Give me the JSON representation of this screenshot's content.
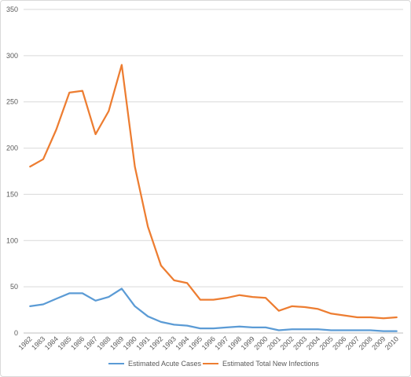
{
  "chart_data": {
    "type": "line",
    "title": "",
    "xlabel": "",
    "ylabel": "",
    "ylim": [
      0,
      350
    ],
    "yticks": [
      0,
      50,
      100,
      150,
      200,
      250,
      300,
      350
    ],
    "grid": true,
    "legend_position": "bottom",
    "categories": [
      "1982",
      "1983",
      "1984",
      "1985",
      "1986",
      "1987",
      "1988",
      "1989",
      "1990",
      "1991",
      "1992",
      "1993",
      "1994",
      "1995",
      "1996",
      "1997",
      "1998",
      "1999",
      "2000",
      "2001",
      "2002",
      "2003",
      "2004",
      "2005",
      "2006",
      "2007",
      "2008",
      "2009",
      "2010"
    ],
    "series": [
      {
        "name": "Estimated Acute Cases",
        "color": "#5b9bd5",
        "values": [
          29,
          31,
          37,
          43,
          43,
          35,
          39,
          48,
          29,
          18,
          12,
          9,
          8,
          5,
          5,
          6,
          7,
          6,
          6,
          3,
          4,
          4,
          4,
          3,
          3,
          3,
          3,
          2,
          2
        ]
      },
      {
        "name": "Estimated Total New Infections",
        "color": "#ed7d31",
        "values": [
          180,
          188,
          220,
          260,
          262,
          215,
          240,
          290,
          180,
          115,
          73,
          57,
          54,
          36,
          36,
          38,
          41,
          39,
          38,
          24,
          29,
          28,
          26,
          21,
          19,
          17,
          17,
          16,
          17
        ]
      }
    ]
  }
}
